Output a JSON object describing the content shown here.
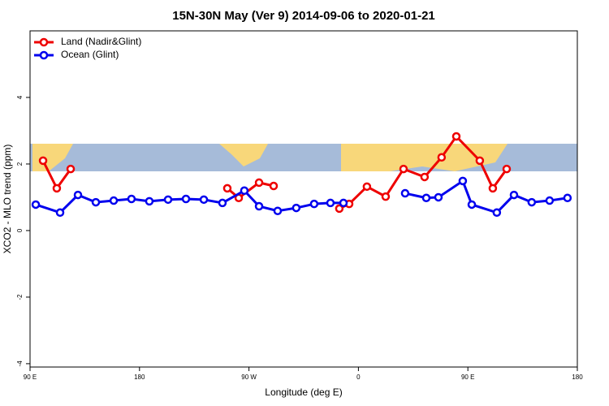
{
  "chart_data": {
    "type": "line",
    "title": "15N-30N May (Ver 9)   2014-09-06 to 2020-01-21",
    "x_label": "Longitude (deg E)",
    "y_label": "XCO2 - MLO trend (ppm)",
    "xlim": [
      90,
      540
    ],
    "ylim": [
      -4.1,
      6.0
    ],
    "xticks": [
      {
        "value": 90,
        "label": "90 E"
      },
      180,
      {
        "value": 270,
        "label": "90 W"
      },
      {
        "value": 360,
        "label": "0"
      },
      {
        "value": 450,
        "label": "90 E"
      },
      180.0001
    ],
    "yticks": [
      -4,
      -2,
      0,
      2,
      4
    ],
    "legend": "top-left",
    "series": [
      {
        "name": "Land (Nadir&Glint)",
        "color": "#ee0000",
        "x": [
          100.7,
          112,
          123.4,
          null,
          252.2,
          261.6,
          278.3,
          290.3,
          null,
          344.3,
          352.4,
          367,
          382.4,
          397.1,
          414.4,
          428.4,
          440.5,
          459.8,
          470.5,
          481.9
        ],
        "values": [
          2.1,
          1.27,
          1.85,
          null,
          1.27,
          0.98,
          1.44,
          1.34,
          null,
          0.66,
          0.8,
          1.32,
          1.02,
          1.85,
          1.61,
          2.2,
          2.83,
          2.1,
          1.27,
          1.85
        ]
      },
      {
        "name": "Ocean (Glint)",
        "color": "#0000ee",
        "x": [
          94.7,
          114.7,
          129.4,
          144.1,
          158.8,
          173.4,
          188.1,
          203.5,
          218.2,
          232.9,
          248.2,
          266.2,
          278.3,
          293.6,
          308.9,
          323.6,
          337,
          347.7,
          null,
          398.4,
          415.8,
          425.8,
          445.8,
          453.2,
          473.8,
          487.9,
          502.5,
          517.2,
          531.9
        ],
        "values": [
          0.78,
          0.54,
          1.07,
          0.85,
          0.9,
          0.95,
          0.88,
          0.93,
          0.95,
          0.93,
          0.83,
          1.2,
          0.73,
          0.59,
          0.68,
          0.8,
          0.83,
          0.83,
          null,
          1.12,
          0.98,
          1.0,
          1.49,
          0.78,
          0.54,
          1.07,
          0.85,
          0.9,
          0.98
        ]
      }
    ]
  }
}
